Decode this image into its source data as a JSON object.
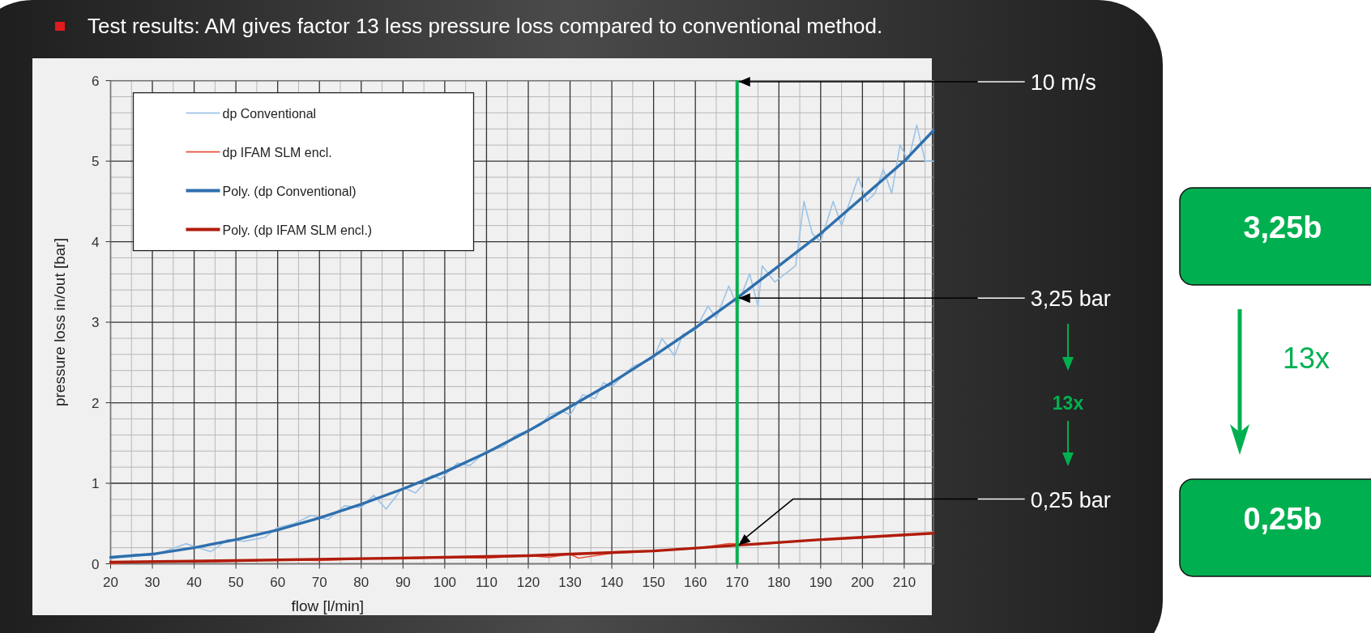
{
  "chart_data": {
    "type": "line",
    "title": "Test results:  AM gives factor 13 less pressure loss compared to conventional method.",
    "xlabel": "flow [l/min]",
    "ylabel": "pressure loss in/out [bar]",
    "xlim": [
      20,
      217
    ],
    "xticks": [
      20,
      30,
      40,
      50,
      60,
      70,
      80,
      90,
      100,
      110,
      120,
      130,
      140,
      150,
      160,
      170,
      180,
      190,
      200,
      210
    ],
    "ylim": [
      0,
      6
    ],
    "yticks": [
      0,
      1,
      2,
      3,
      4,
      5,
      6
    ],
    "grid": true,
    "legend": "top left",
    "marker": "none",
    "line_style": "solid",
    "series": [
      {
        "name": "dp Conventional",
        "color": "#9dc3e6",
        "x": [
          20,
          26,
          30,
          38,
          44,
          48,
          52,
          57,
          60,
          64,
          68,
          72,
          76,
          80,
          83,
          86,
          90,
          93,
          97,
          99,
          103,
          106,
          110,
          114,
          117,
          120,
          123,
          125,
          128,
          130,
          133,
          136,
          138,
          140,
          145,
          150,
          152,
          155,
          157,
          160,
          163,
          165,
          168,
          170,
          173,
          175,
          176,
          179,
          184,
          186,
          188,
          190,
          193,
          195,
          197,
          199,
          201,
          203,
          205,
          207,
          209,
          211,
          213,
          215,
          217
        ],
        "values": [
          0.06,
          0.12,
          0.1,
          0.25,
          0.15,
          0.3,
          0.28,
          0.33,
          0.45,
          0.5,
          0.6,
          0.55,
          0.72,
          0.7,
          0.85,
          0.68,
          0.95,
          0.88,
          1.1,
          1.05,
          1.25,
          1.22,
          1.4,
          1.45,
          1.6,
          1.65,
          1.72,
          1.85,
          1.9,
          1.85,
          2.1,
          2.05,
          2.25,
          2.2,
          2.45,
          2.55,
          2.8,
          2.58,
          2.85,
          2.9,
          3.2,
          3.05,
          3.45,
          3.2,
          3.6,
          3.2,
          3.7,
          3.5,
          3.7,
          4.5,
          4.1,
          4.0,
          4.5,
          4.2,
          4.5,
          4.8,
          4.5,
          4.6,
          4.9,
          4.6,
          5.2,
          5.0,
          5.45,
          5.0,
          5.0
        ]
      },
      {
        "name": "dp IFAM SLM encl.",
        "color": "#e8553d",
        "x": [
          20,
          30,
          40,
          50,
          60,
          70,
          80,
          90,
          100,
          110,
          120,
          125,
          130,
          132,
          140,
          150,
          160,
          168,
          175,
          190,
          200,
          217
        ],
        "values": [
          0.0,
          0.03,
          0.02,
          0.03,
          0.05,
          0.04,
          0.06,
          0.06,
          0.08,
          0.07,
          0.1,
          0.08,
          0.12,
          0.07,
          0.13,
          0.16,
          0.19,
          0.25,
          0.24,
          0.3,
          0.32,
          0.38
        ]
      },
      {
        "name": "Poly. (dp Conventional)",
        "color": "#2e6fad",
        "x": [
          20,
          30,
          40,
          50,
          60,
          70,
          80,
          90,
          100,
          110,
          120,
          130,
          140,
          150,
          160,
          170,
          180,
          190,
          200,
          210,
          217
        ],
        "values": [
          0.08,
          0.12,
          0.2,
          0.3,
          0.42,
          0.57,
          0.74,
          0.93,
          1.14,
          1.38,
          1.65,
          1.95,
          2.25,
          2.58,
          2.93,
          3.3,
          3.7,
          4.1,
          4.55,
          5.0,
          5.38
        ]
      },
      {
        "name": "Poly. (dp IFAM SLM encl.)",
        "color": "#b01c0c",
        "x": [
          20,
          50,
          100,
          120,
          130,
          150,
          170,
          190,
          217
        ],
        "values": [
          0.02,
          0.04,
          0.08,
          0.1,
          0.12,
          0.16,
          0.23,
          0.3,
          0.38
        ]
      }
    ],
    "ref_lines": [
      {
        "axis": "x",
        "value": 170,
        "color": "#00b050"
      }
    ],
    "annotations": [
      "10 m/s",
      {
        "text": "3,25 bar",
        "x": 170,
        "y": 3.3
      },
      {
        "text": "0,25 bar",
        "x": 170,
        "y": 0.23
      },
      "13x",
      "3,25b",
      "13x",
      "0,25b"
    ]
  }
}
